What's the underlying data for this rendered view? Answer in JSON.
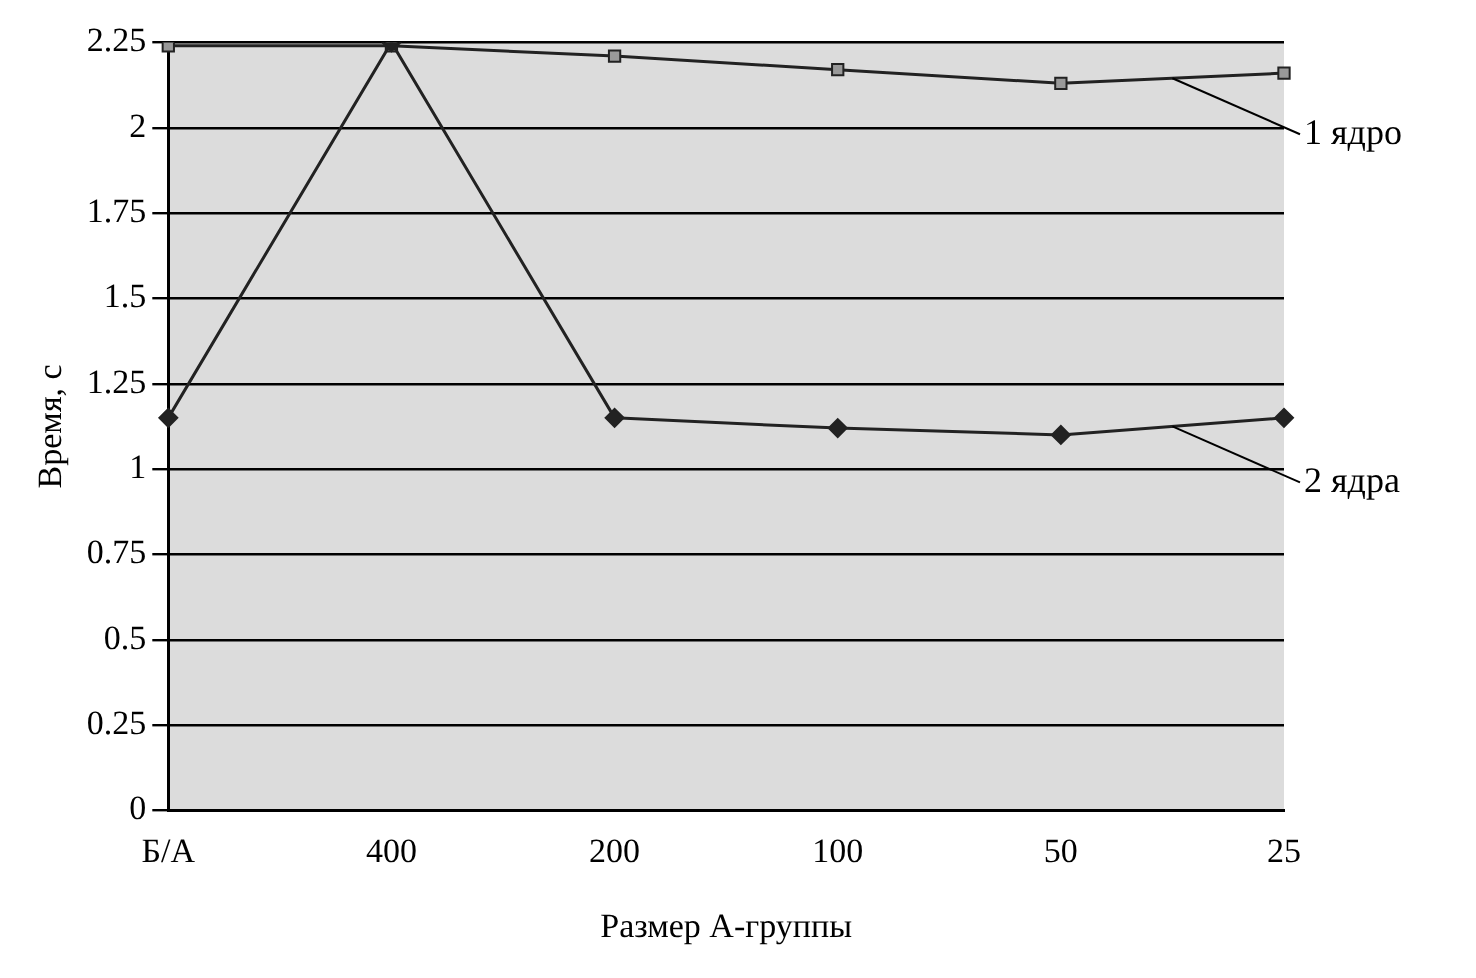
{
  "chart_data": {
    "type": "line",
    "xlabel": "Размер А-группы",
    "ylabel": "Время, с",
    "categories": [
      "Б/А",
      "400",
      "200",
      "100",
      "50",
      "25"
    ],
    "series": [
      {
        "name": "1 ядро",
        "color": "#222222",
        "marker": "square",
        "values": [
          2.24,
          2.24,
          2.21,
          2.17,
          2.13,
          2.16
        ]
      },
      {
        "name": "2 ядра",
        "color": "#222222",
        "marker": "diamond",
        "values": [
          1.15,
          2.25,
          1.15,
          1.12,
          1.1,
          1.15
        ]
      }
    ],
    "ylim": [
      0,
      2.25
    ],
    "yticks": [
      0,
      0.25,
      0.5,
      0.75,
      1,
      1.25,
      1.5,
      1.75,
      2,
      2.25
    ],
    "grid": "y",
    "legend": false,
    "line_style": "solid"
  }
}
